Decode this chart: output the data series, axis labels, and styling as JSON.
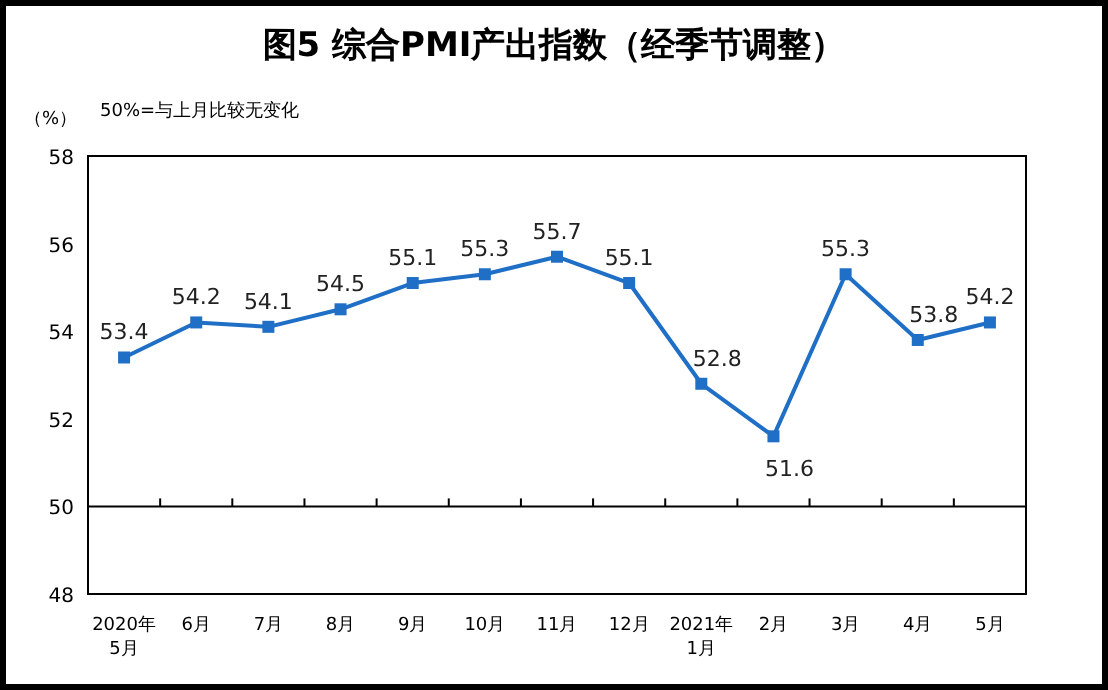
{
  "chart_data": {
    "type": "line",
    "title": "图5  综合PMI产出指数（经季节调整）",
    "ylabel": "（%）",
    "annotations": [
      "50%=与上月比较无变化"
    ],
    "categories": [
      "2020年\n5月",
      "6月",
      "7月",
      "8月",
      "9月",
      "10月",
      "11月",
      "12月",
      "2021年\n1月",
      "2月",
      "3月",
      "4月",
      "5月"
    ],
    "series": [
      {
        "color": "#1f6fc6",
        "values": [
          53.4,
          54.2,
          54.1,
          54.5,
          55.1,
          55.3,
          55.7,
          55.1,
          52.8,
          51.6,
          55.3,
          53.8,
          54.2
        ]
      }
    ],
    "ylim": [
      48,
      58
    ],
    "yticks": [
      48,
      50,
      52,
      54,
      56,
      58
    ],
    "ref_lines": [
      {
        "axis": "y",
        "value": 50,
        "color": "#000000"
      }
    ],
    "data_labels": true,
    "marker": "square",
    "line_style": "solid",
    "grid": false
  }
}
